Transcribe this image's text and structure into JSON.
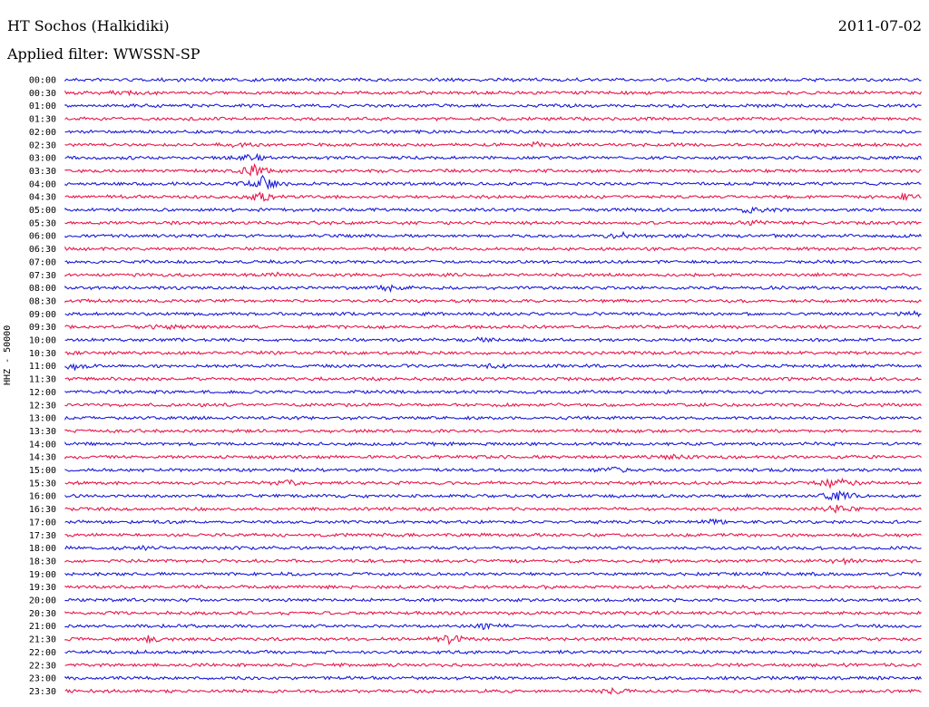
{
  "header": {
    "station": "HT Sochos (Halkidiki)",
    "date": "2011-07-02",
    "filter": "Applied filter: WWSSN-SP"
  },
  "chart_data": {
    "type": "line",
    "ylabel": "HHZ - 50000",
    "colors": [
      "#1a1ad8",
      "#e8164a"
    ],
    "rows": [
      "00:00",
      "00:30",
      "01:00",
      "01:30",
      "02:00",
      "02:30",
      "03:00",
      "03:30",
      "04:00",
      "04:30",
      "05:00",
      "05:30",
      "06:00",
      "06:30",
      "07:00",
      "07:30",
      "08:00",
      "08:30",
      "09:00",
      "09:30",
      "10:00",
      "10:30",
      "11:00",
      "11:30",
      "12:00",
      "12:30",
      "13:00",
      "13:30",
      "14:00",
      "14:30",
      "15:00",
      "15:30",
      "16:00",
      "16:30",
      "17:00",
      "17:30",
      "18:00",
      "18:30",
      "19:00",
      "19:30",
      "20:00",
      "20:30",
      "21:00",
      "21:30",
      "22:00",
      "22:30",
      "23:00",
      "23:30"
    ],
    "events": [
      {
        "row": "00:30",
        "x": 0.07,
        "amp": 1.6
      },
      {
        "row": "02:30",
        "x": 0.2,
        "amp": 1.8
      },
      {
        "row": "02:30",
        "x": 0.55,
        "amp": 2.2
      },
      {
        "row": "03:00",
        "x": 0.22,
        "amp": 4.0
      },
      {
        "row": "03:30",
        "x": 0.22,
        "amp": 6.0
      },
      {
        "row": "04:00",
        "x": 0.23,
        "amp": 9.0
      },
      {
        "row": "04:30",
        "x": 0.23,
        "amp": 5.0
      },
      {
        "row": "04:30",
        "x": 0.98,
        "amp": 3.0
      },
      {
        "row": "05:00",
        "x": 0.8,
        "amp": 3.0
      },
      {
        "row": "05:30",
        "x": 0.8,
        "amp": 2.5
      },
      {
        "row": "06:00",
        "x": 0.65,
        "amp": 2.6
      },
      {
        "row": "07:30",
        "x": 0.24,
        "amp": 2.0
      },
      {
        "row": "08:00",
        "x": 0.38,
        "amp": 2.4
      },
      {
        "row": "09:00",
        "x": 0.99,
        "amp": 2.5
      },
      {
        "row": "09:30",
        "x": 0.12,
        "amp": 2.2
      },
      {
        "row": "10:00",
        "x": 0.49,
        "amp": 2.0
      },
      {
        "row": "11:00",
        "x": 0.01,
        "amp": 3.5
      },
      {
        "row": "11:00",
        "x": 0.5,
        "amp": 2.4
      },
      {
        "row": "14:30",
        "x": 0.71,
        "amp": 2.8
      },
      {
        "row": "15:00",
        "x": 0.64,
        "amp": 2.4
      },
      {
        "row": "15:30",
        "x": 0.26,
        "amp": 2.6
      },
      {
        "row": "15:30",
        "x": 0.9,
        "amp": 6.0
      },
      {
        "row": "16:00",
        "x": 0.9,
        "amp": 8.0
      },
      {
        "row": "16:30",
        "x": 0.9,
        "amp": 4.0
      },
      {
        "row": "17:00",
        "x": 0.76,
        "amp": 2.0
      },
      {
        "row": "18:00",
        "x": 0.09,
        "amp": 2.0
      },
      {
        "row": "18:30",
        "x": 0.91,
        "amp": 2.2
      },
      {
        "row": "21:00",
        "x": 0.49,
        "amp": 3.0
      },
      {
        "row": "21:30",
        "x": 0.1,
        "amp": 3.2
      },
      {
        "row": "21:30",
        "x": 0.45,
        "amp": 5.0
      },
      {
        "row": "23:30",
        "x": 0.64,
        "amp": 2.0
      }
    ]
  }
}
